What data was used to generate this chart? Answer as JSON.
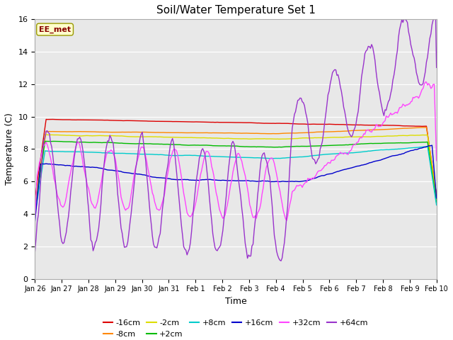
{
  "title": "Soil/Water Temperature Set 1",
  "xlabel": "Time",
  "ylabel": "Temperature (C)",
  "ylim": [
    0,
    16
  ],
  "background_color": "#ffffff",
  "plot_bg_color": "#e8e8e8",
  "annotation_text": "EE_met",
  "annotation_bg": "#ffffcc",
  "annotation_border": "#999900",
  "annotation_text_color": "#880000",
  "series": [
    {
      "label": "-16cm",
      "color": "#dd0000"
    },
    {
      "label": "-8cm",
      "color": "#ff8800"
    },
    {
      "label": "-2cm",
      "color": "#dddd00"
    },
    {
      "label": "+2cm",
      "color": "#00bb00"
    },
    {
      "label": "+8cm",
      "color": "#00cccc"
    },
    {
      "label": "+16cm",
      "color": "#0000cc"
    },
    {
      "label": "+32cm",
      "color": "#ff44ff"
    },
    {
      "label": "+64cm",
      "color": "#9933cc"
    }
  ],
  "x_tick_labels": [
    "Jan 26",
    "Jan 27",
    "Jan 28",
    "Jan 29",
    "Jan 30",
    "Jan 31",
    "Feb 1",
    "Feb 2",
    "Feb 3",
    "Feb 4",
    "Feb 5",
    "Feb 6",
    "Feb 7",
    "Feb 8",
    "Feb 9",
    "Feb 10"
  ],
  "yticks": [
    0,
    2,
    4,
    6,
    8,
    10,
    12,
    14,
    16
  ]
}
